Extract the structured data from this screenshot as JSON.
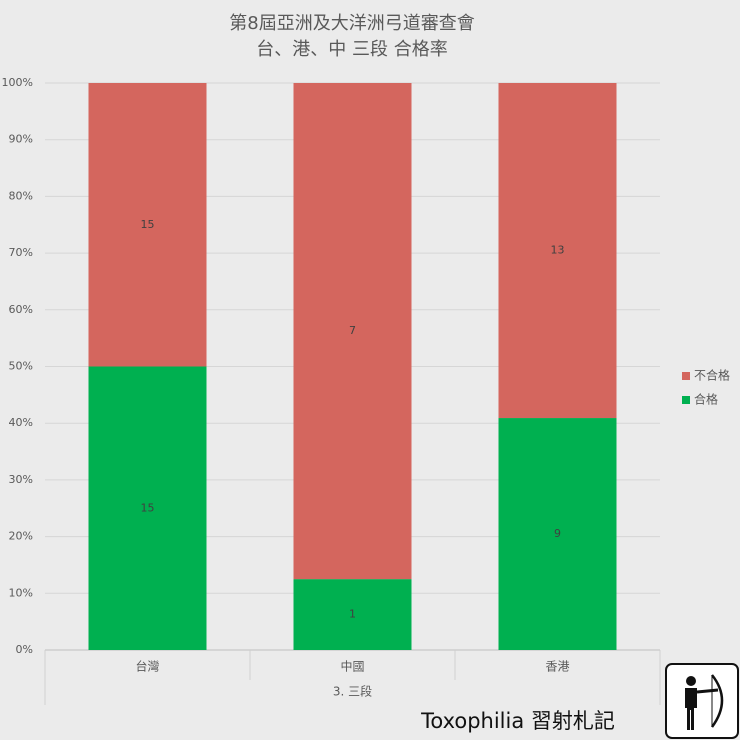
{
  "chart_data": {
    "type": "bar",
    "stack": "percent",
    "title": "第8屆亞洲及大洋洲弓道審查會",
    "subtitle": "台、港、中 三段 合格率",
    "categories": [
      "台灣",
      "中國",
      "香港"
    ],
    "group_label": "3. 三段",
    "series": [
      {
        "name": "合格",
        "color": "#00b050",
        "values": [
          15,
          1,
          9
        ]
      },
      {
        "name": "不合格",
        "color": "#d4665e",
        "values": [
          15,
          7,
          13
        ]
      }
    ],
    "ylim": [
      0,
      100
    ],
    "yticks": [
      {
        "value": 0,
        "label": "0%"
      },
      {
        "value": 10,
        "label": "10%"
      },
      {
        "value": 20,
        "label": "20%"
      },
      {
        "value": 30,
        "label": "30%"
      },
      {
        "value": 40,
        "label": "40%"
      },
      {
        "value": 50,
        "label": "50%"
      },
      {
        "value": 60,
        "label": "60%"
      },
      {
        "value": 70,
        "label": "70%"
      },
      {
        "value": 80,
        "label": "80%"
      },
      {
        "value": 90,
        "label": "90%"
      },
      {
        "value": 100,
        "label": "100%"
      }
    ],
    "grid": true,
    "legend": "right"
  },
  "watermark": "Toxophilia 習射札記"
}
